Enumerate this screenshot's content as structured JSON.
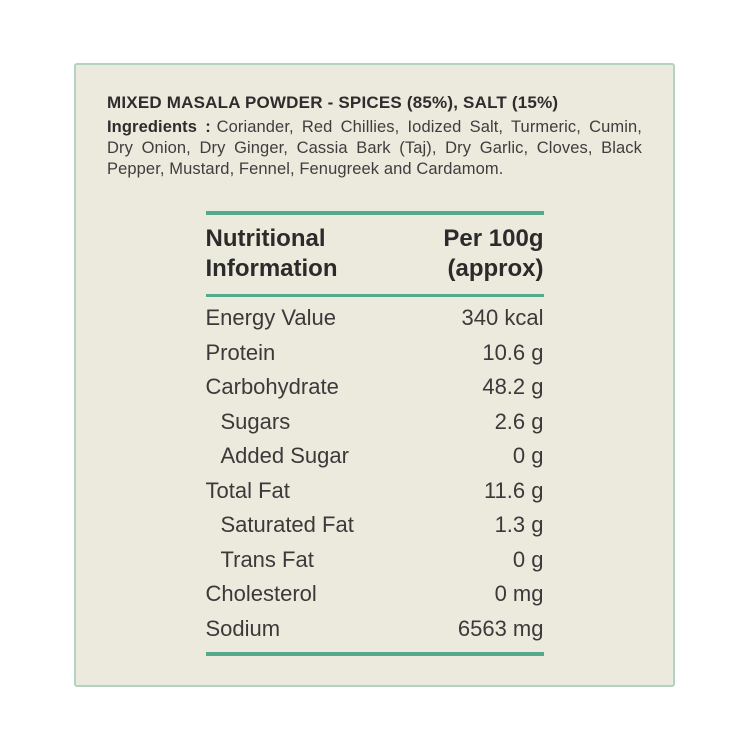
{
  "page": {
    "background": "#ffffff"
  },
  "card": {
    "background": "#ece9dd",
    "border_color": "#b3d2c2",
    "accent_line_color": "#55aa8c"
  },
  "header": {
    "title": "MIXED MASALA POWDER - SPICES (85%), SALT (15%)",
    "ingredients_label": "Ingredients :",
    "ingredients": "Coriander, Red Chillies, Iodized Salt, Turmeric, Cumin, Dry Onion, Dry Ginger, Cassia Bark (Taj), Dry Garlic, Cloves, Black Pepper, Mustard, Fennel, Fenugreek and Cardamom."
  },
  "table": {
    "col1_header": "Nutritional Information",
    "col2_header": "Per 100g (approx)",
    "rows": [
      {
        "label": "Energy Value",
        "value": "340 kcal",
        "indent": false
      },
      {
        "label": "Protein",
        "value": "10.6 g",
        "indent": false
      },
      {
        "label": "Carbohydrate",
        "value": "48.2 g",
        "indent": false
      },
      {
        "label": "Sugars",
        "value": "2.6 g",
        "indent": true
      },
      {
        "label": "Added Sugar",
        "value": "0 g",
        "indent": true
      },
      {
        "label": "Total Fat",
        "value": "11.6 g",
        "indent": false
      },
      {
        "label": "Saturated Fat",
        "value": "1.3 g",
        "indent": true
      },
      {
        "label": "Trans Fat",
        "value": "0 g",
        "indent": true
      },
      {
        "label": "Cholesterol",
        "value": "0 mg",
        "indent": false
      },
      {
        "label": "Sodium",
        "value": "6563 mg",
        "indent": false
      }
    ]
  }
}
